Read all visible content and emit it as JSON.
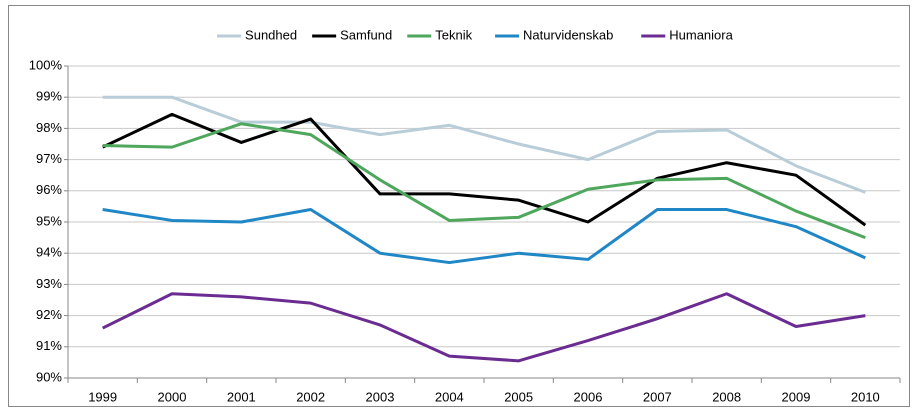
{
  "chart_data": {
    "type": "line",
    "categories": [
      "1999",
      "2000",
      "2001",
      "2002",
      "2003",
      "2004",
      "2005",
      "2006",
      "2007",
      "2008",
      "2009",
      "2010"
    ],
    "series": [
      {
        "name": "Sundhed",
        "color": "#b9cdd8",
        "values": [
          99.0,
          99.0,
          98.2,
          98.2,
          97.8,
          98.1,
          97.5,
          97.0,
          97.9,
          97.95,
          96.8,
          95.95
        ]
      },
      {
        "name": "Samfund",
        "color": "#000000",
        "values": [
          97.4,
          98.45,
          97.55,
          98.3,
          95.9,
          95.9,
          95.7,
          95.0,
          96.4,
          96.9,
          96.5,
          94.9
        ]
      },
      {
        "name": "Teknik",
        "color": "#4ea75c",
        "values": [
          97.45,
          97.4,
          98.15,
          97.8,
          96.35,
          95.05,
          95.15,
          96.05,
          96.35,
          96.4,
          95.35,
          94.5
        ]
      },
      {
        "name": "Naturvidenskab",
        "color": "#1f87c6",
        "values": [
          95.4,
          95.05,
          95.0,
          95.4,
          94.0,
          93.7,
          94.0,
          93.8,
          95.4,
          95.4,
          94.85,
          93.85
        ]
      },
      {
        "name": "Humaniora",
        "color": "#6a2c91",
        "values": [
          91.6,
          92.7,
          92.6,
          92.4,
          91.7,
          90.7,
          90.55,
          91.2,
          91.9,
          92.7,
          91.65,
          92.0
        ]
      }
    ],
    "ylim": [
      90,
      100
    ],
    "yticks": [
      {
        "value": 90,
        "label": "90%"
      },
      {
        "value": 91,
        "label": "91%"
      },
      {
        "value": 92,
        "label": "92%"
      },
      {
        "value": 93,
        "label": "93%"
      },
      {
        "value": 94,
        "label": "94%"
      },
      {
        "value": 95,
        "label": "95%"
      },
      {
        "value": 96,
        "label": "96%"
      },
      {
        "value": 97,
        "label": "97%"
      },
      {
        "value": 98,
        "label": "98%"
      },
      {
        "value": 99,
        "label": "99%"
      },
      {
        "value": 100,
        "label": "100%"
      }
    ],
    "grid": true,
    "legend": "top"
  }
}
